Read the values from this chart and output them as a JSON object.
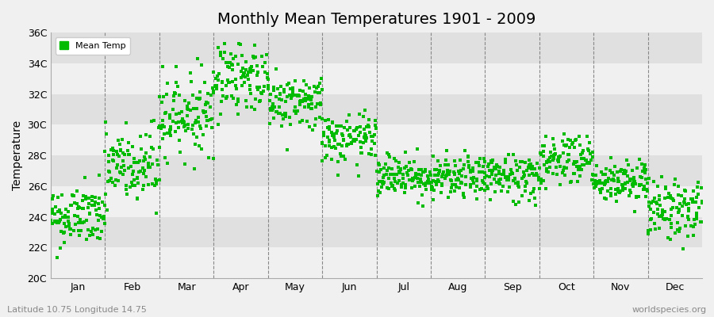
{
  "title": "Monthly Mean Temperatures 1901 - 2009",
  "ylabel": "Temperature",
  "xlabel_left": "Latitude 10.75 Longitude 14.75",
  "xlabel_right": "worldspecies.org",
  "legend_label": "Mean Temp",
  "ylim": [
    20,
    36
  ],
  "ytick_labels": [
    "20C",
    "22C",
    "24C",
    "26C",
    "28C",
    "30C",
    "32C",
    "34C",
    "36C"
  ],
  "ytick_values": [
    20,
    22,
    24,
    26,
    28,
    30,
    32,
    34,
    36
  ],
  "months": [
    "Jan",
    "Feb",
    "Mar",
    "Apr",
    "May",
    "Jun",
    "Jul",
    "Aug",
    "Sep",
    "Oct",
    "Nov",
    "Dec"
  ],
  "monthly_mean": [
    24.0,
    27.2,
    30.7,
    33.2,
    31.5,
    29.0,
    26.7,
    26.5,
    26.6,
    27.8,
    26.3,
    24.5
  ],
  "monthly_std": [
    1.0,
    1.4,
    1.3,
    1.2,
    0.9,
    0.8,
    0.7,
    0.7,
    0.8,
    0.9,
    0.7,
    1.0
  ],
  "n_years": 109,
  "dot_color": "#00bb00",
  "band_color_light": "#f0f0f0",
  "band_color_dark": "#e0e0e0",
  "title_fontsize": 14,
  "axis_label_fontsize": 10,
  "tick_fontsize": 9,
  "seed": 42
}
